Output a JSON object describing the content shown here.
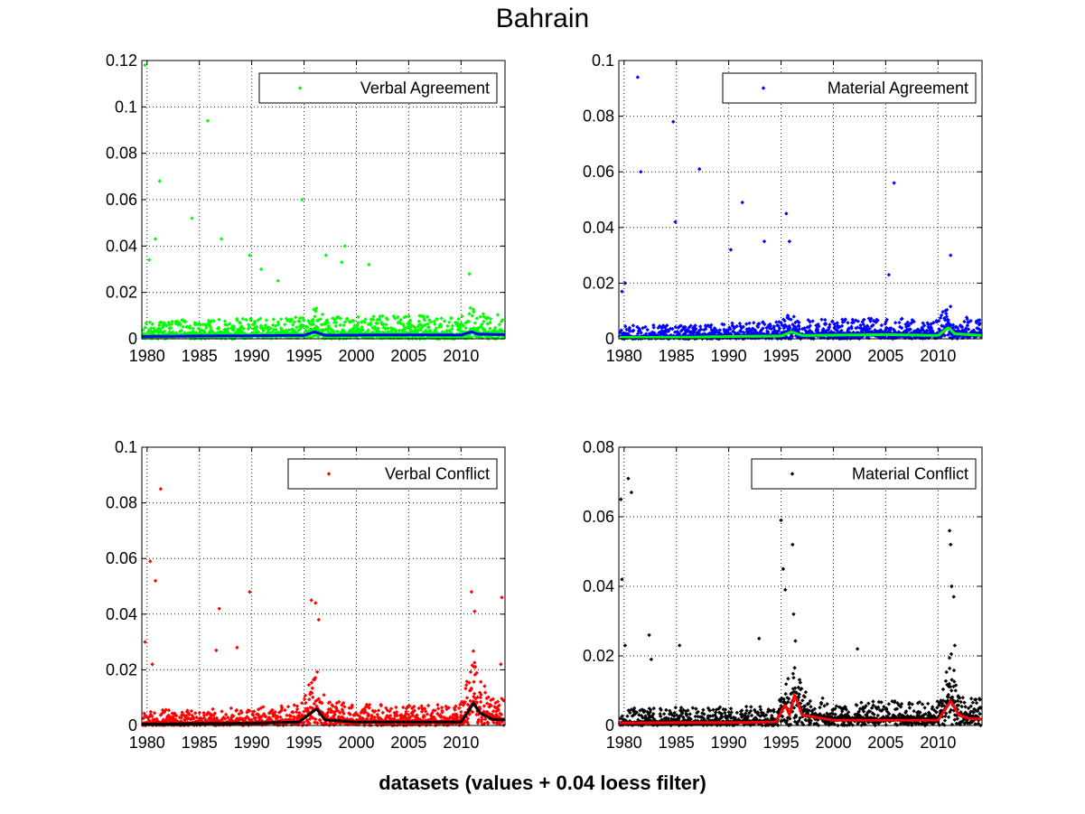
{
  "figure": {
    "title": "Bahrain",
    "bottom_label": "datasets (values + 0.04 loess filter)"
  },
  "chart_data": [
    {
      "type": "scatter",
      "series": [
        {
          "name": "Verbal Agreement",
          "role": "points",
          "color": "#00ff00"
        },
        {
          "role": "loess",
          "color": "#0000ff"
        }
      ],
      "xticks": [
        "1980",
        "1985",
        "1990",
        "1995",
        "2000",
        "2005",
        "2010"
      ],
      "xlim": [
        1979.5,
        2014.2
      ],
      "ylim": [
        0,
        0.12
      ],
      "yticks": [
        "0",
        "0.02",
        "0.04",
        "0.06",
        "0.08",
        "0.1",
        "0.12"
      ],
      "grid": true,
      "legend_position": "top-right",
      "seed": 11,
      "base_scale": 0.0045,
      "outliers": [
        [
          1979.8,
          0.118
        ],
        [
          1980.2,
          0.034
        ],
        [
          1980.8,
          0.043
        ],
        [
          1981.2,
          0.068
        ],
        [
          1984.3,
          0.052
        ],
        [
          1985.8,
          0.094
        ],
        [
          1987.1,
          0.043
        ],
        [
          1989.8,
          0.036
        ],
        [
          1994.8,
          0.06
        ],
        [
          1997.1,
          0.036
        ],
        [
          1998.9,
          0.04
        ],
        [
          1998.6,
          0.033
        ],
        [
          2001.2,
          0.032
        ],
        [
          2010.8,
          0.028
        ],
        [
          1992.5,
          0.025
        ],
        [
          1990.9,
          0.03
        ]
      ],
      "loess": [
        [
          1979.5,
          0.001
        ],
        [
          1985,
          0.0012
        ],
        [
          1990,
          0.0013
        ],
        [
          1995,
          0.0015
        ],
        [
          1996,
          0.003
        ],
        [
          1997,
          0.0015
        ],
        [
          2005,
          0.0017
        ],
        [
          2010,
          0.0016
        ],
        [
          2011,
          0.003
        ],
        [
          2011.6,
          0.002
        ],
        [
          2014.2,
          0.0018
        ]
      ]
    },
    {
      "type": "scatter",
      "series": [
        {
          "name": "Material Agreement",
          "role": "points",
          "color": "#0000ff"
        },
        {
          "role": "loess",
          "color": "#00ff00"
        }
      ],
      "xticks": [
        "1980",
        "1985",
        "1990",
        "1995",
        "2000",
        "2005",
        "2010"
      ],
      "xlim": [
        1979.5,
        2014.2
      ],
      "ylim": [
        0,
        0.1
      ],
      "yticks": [
        "0",
        "0.02",
        "0.04",
        "0.06",
        "0.08",
        "0.1"
      ],
      "grid": true,
      "legend_position": "top-right",
      "seed": 23,
      "base_scale": 0.0035,
      "outliers": [
        [
          1979.8,
          0.017
        ],
        [
          1980.1,
          0.02
        ],
        [
          1981.3,
          0.094
        ],
        [
          1981.6,
          0.06
        ],
        [
          1984.7,
          0.078
        ],
        [
          1984.9,
          0.042
        ],
        [
          1987.2,
          0.061
        ],
        [
          1990.2,
          0.032
        ],
        [
          1991.3,
          0.049
        ],
        [
          1993.4,
          0.035
        ],
        [
          1995.5,
          0.045
        ],
        [
          1995.8,
          0.035
        ],
        [
          2005.8,
          0.056
        ],
        [
          2011.2,
          0.03
        ],
        [
          2005.3,
          0.023
        ]
      ],
      "loess": [
        [
          1979.5,
          0.0005
        ],
        [
          1985,
          0.0005
        ],
        [
          1990,
          0.0008
        ],
        [
          1995,
          0.001
        ],
        [
          1996,
          0.0025
        ],
        [
          1997,
          0.0012
        ],
        [
          2005,
          0.0015
        ],
        [
          2010,
          0.0012
        ],
        [
          2011,
          0.004
        ],
        [
          2011.6,
          0.0018
        ],
        [
          2014.2,
          0.0012
        ]
      ]
    },
    {
      "type": "scatter",
      "series": [
        {
          "name": "Verbal Conflict",
          "role": "points",
          "color": "#ff0000"
        },
        {
          "role": "loess",
          "color": "#000000"
        }
      ],
      "xticks": [
        "1980",
        "1985",
        "1990",
        "1995",
        "2000",
        "2005",
        "2010"
      ],
      "xlim": [
        1979.5,
        2014.2
      ],
      "ylim": [
        0,
        0.1
      ],
      "yticks": [
        "0",
        "0.02",
        "0.04",
        "0.06",
        "0.08",
        "0.1"
      ],
      "grid": true,
      "legend_position": "top-right",
      "seed": 37,
      "base_scale": 0.004,
      "outliers": [
        [
          1979.8,
          0.03
        ],
        [
          1980.3,
          0.059
        ],
        [
          1980.5,
          0.022
        ],
        [
          1980.8,
          0.052
        ],
        [
          1981.3,
          0.085
        ],
        [
          1986.6,
          0.027
        ],
        [
          1986.9,
          0.042
        ],
        [
          1988.6,
          0.028
        ],
        [
          1989.8,
          0.048
        ],
        [
          1995.7,
          0.045
        ],
        [
          1996.1,
          0.044
        ],
        [
          1996.4,
          0.038
        ],
        [
          2011.0,
          0.048
        ],
        [
          2011.3,
          0.041
        ],
        [
          2013.9,
          0.046
        ],
        [
          2013.8,
          0.022
        ]
      ],
      "loess": [
        [
          1979.5,
          0.0005
        ],
        [
          1985,
          0.0007
        ],
        [
          1990,
          0.0008
        ],
        [
          1994.5,
          0.0012
        ],
        [
          1995.5,
          0.004
        ],
        [
          1996.2,
          0.006
        ],
        [
          1997,
          0.002
        ],
        [
          2000,
          0.0012
        ],
        [
          2005,
          0.0012
        ],
        [
          2010,
          0.0012
        ],
        [
          2011.2,
          0.008
        ],
        [
          2011.8,
          0.0045
        ],
        [
          2013,
          0.0022
        ],
        [
          2014.2,
          0.002
        ]
      ]
    },
    {
      "type": "scatter",
      "series": [
        {
          "name": "Material Conflict",
          "role": "points",
          "color": "#000000"
        },
        {
          "role": "loess",
          "color": "#ff0000"
        }
      ],
      "xticks": [
        "1980",
        "1985",
        "1990",
        "1995",
        "2000",
        "2005",
        "2010"
      ],
      "xlim": [
        1979.5,
        2014.2
      ],
      "ylim": [
        0,
        0.08
      ],
      "yticks": [
        "0",
        "0.02",
        "0.04",
        "0.06",
        "0.08"
      ],
      "grid": true,
      "legend_position": "top-right",
      "seed": 53,
      "base_scale": 0.0032,
      "outliers": [
        [
          1979.7,
          0.065
        ],
        [
          1979.8,
          0.042
        ],
        [
          1980.1,
          0.023
        ],
        [
          1980.4,
          0.071
        ],
        [
          1980.7,
          0.067
        ],
        [
          1982.4,
          0.026
        ],
        [
          1982.6,
          0.019
        ],
        [
          1985.3,
          0.023
        ],
        [
          1992.9,
          0.025
        ],
        [
          1995.0,
          0.059
        ],
        [
          1995.2,
          0.045
        ],
        [
          1995.4,
          0.039
        ],
        [
          1996.1,
          0.052
        ],
        [
          1996.2,
          0.032
        ],
        [
          2002.3,
          0.022
        ],
        [
          2011.1,
          0.056
        ],
        [
          2011.2,
          0.052
        ],
        [
          2011.3,
          0.04
        ],
        [
          2011.5,
          0.037
        ],
        [
          2011.6,
          0.023
        ]
      ],
      "loess": [
        [
          1979.5,
          0.0007
        ],
        [
          1985,
          0.0008
        ],
        [
          1990,
          0.0008
        ],
        [
          1994.5,
          0.001
        ],
        [
          1995.4,
          0.006
        ],
        [
          1995.8,
          0.003
        ],
        [
          1996.3,
          0.009
        ],
        [
          1997,
          0.003
        ],
        [
          2000,
          0.0015
        ],
        [
          2005,
          0.0015
        ],
        [
          2010,
          0.0015
        ],
        [
          2011.2,
          0.007
        ],
        [
          2012,
          0.003
        ],
        [
          2013,
          0.002
        ],
        [
          2014.2,
          0.0018
        ]
      ]
    }
  ]
}
